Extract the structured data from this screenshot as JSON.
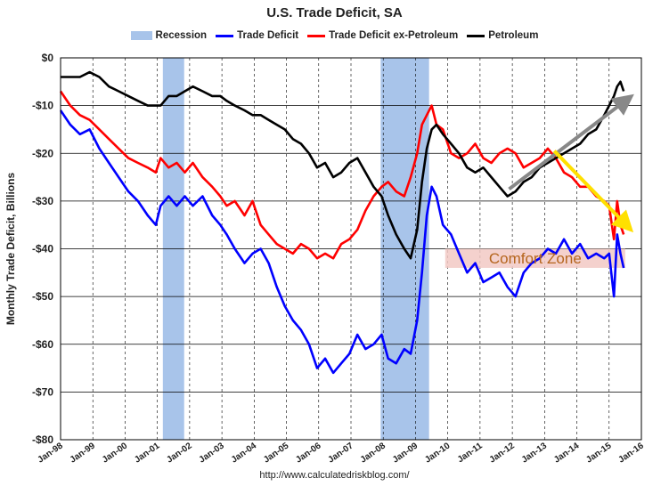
{
  "chart_data": {
    "type": "line",
    "title": "U.S. Trade Deficit, SA",
    "ylabel": "Monthly Trade Deficit, Billions",
    "xlabel": "",
    "ylim": [
      -80,
      0
    ],
    "xlim": [
      1998.0,
      2016.0
    ],
    "y_ticks": [
      "-$80",
      "-$70",
      "-$60",
      "-$50",
      "-$40",
      "-$30",
      "-$20",
      "-$10",
      "$0"
    ],
    "y_tick_values": [
      -80,
      -70,
      -60,
      -50,
      -40,
      -30,
      -20,
      -10,
      0
    ],
    "x_ticks": [
      "Jan-98",
      "Jan-99",
      "Jan-00",
      "Jan-01",
      "Jan-02",
      "Jan-03",
      "Jan-04",
      "Jan-05",
      "Jan-06",
      "Jan-07",
      "Jan-08",
      "Jan-09",
      "Jan-10",
      "Jan-11",
      "Jan-12",
      "Jan-13",
      "Jan-14",
      "Jan-15",
      "Jan-16"
    ],
    "x_tick_values": [
      1998,
      1999,
      2000,
      2001,
      2002,
      2003,
      2004,
      2005,
      2006,
      2007,
      2008,
      2009,
      2010,
      2011,
      2012,
      2013,
      2014,
      2015,
      2016
    ],
    "grid": true,
    "legend_position": "top",
    "recessions": [
      {
        "start": 2001.17,
        "end": 2001.83
      },
      {
        "start": 2007.92,
        "end": 2009.42
      }
    ],
    "recession_label": "Recession",
    "recession_color": "#a8c4ea",
    "annotation": {
      "label": "Comfort Zone",
      "x_start": 2009.92,
      "x_end": 2015.5,
      "y_top": -40,
      "y_bottom": -44,
      "fill": "#f2c9c4",
      "text_color": "#b5651d"
    },
    "arrows": [
      {
        "color": "#888888",
        "x1": 2011.9,
        "y1": -27.5,
        "x2": 2015.6,
        "y2": -8.5
      },
      {
        "color": "#ffe000",
        "x1": 2013.3,
        "y1": -19.5,
        "x2": 2015.6,
        "y2": -35.5
      }
    ],
    "series": [
      {
        "name": "Trade Deficit",
        "color": "#0000ff",
        "points": [
          [
            1998.0,
            -11
          ],
          [
            1998.3,
            -14
          ],
          [
            1998.6,
            -16
          ],
          [
            1998.9,
            -15
          ],
          [
            1999.2,
            -19
          ],
          [
            1999.5,
            -22
          ],
          [
            1999.8,
            -25
          ],
          [
            2000.1,
            -28
          ],
          [
            2000.4,
            -30
          ],
          [
            2000.7,
            -33
          ],
          [
            2000.95,
            -35
          ],
          [
            2001.1,
            -31
          ],
          [
            2001.35,
            -29
          ],
          [
            2001.6,
            -31
          ],
          [
            2001.85,
            -29
          ],
          [
            2002.1,
            -31
          ],
          [
            2002.4,
            -29
          ],
          [
            2002.7,
            -33
          ],
          [
            2002.95,
            -35
          ],
          [
            2003.15,
            -37
          ],
          [
            2003.4,
            -40
          ],
          [
            2003.7,
            -43
          ],
          [
            2003.95,
            -41
          ],
          [
            2004.2,
            -40
          ],
          [
            2004.45,
            -43
          ],
          [
            2004.7,
            -48
          ],
          [
            2004.95,
            -52
          ],
          [
            2005.2,
            -55
          ],
          [
            2005.45,
            -57
          ],
          [
            2005.7,
            -60
          ],
          [
            2005.95,
            -65
          ],
          [
            2006.2,
            -63
          ],
          [
            2006.45,
            -66
          ],
          [
            2006.7,
            -64
          ],
          [
            2006.95,
            -62
          ],
          [
            2007.2,
            -58
          ],
          [
            2007.45,
            -61
          ],
          [
            2007.7,
            -60
          ],
          [
            2007.95,
            -58
          ],
          [
            2008.15,
            -63
          ],
          [
            2008.4,
            -64
          ],
          [
            2008.65,
            -61
          ],
          [
            2008.85,
            -62
          ],
          [
            2009.05,
            -55
          ],
          [
            2009.2,
            -45
          ],
          [
            2009.35,
            -33
          ],
          [
            2009.5,
            -27
          ],
          [
            2009.65,
            -29
          ],
          [
            2009.85,
            -35
          ],
          [
            2010.1,
            -37
          ],
          [
            2010.35,
            -41
          ],
          [
            2010.6,
            -45
          ],
          [
            2010.85,
            -43
          ],
          [
            2011.1,
            -47
          ],
          [
            2011.35,
            -46
          ],
          [
            2011.6,
            -45
          ],
          [
            2011.85,
            -48
          ],
          [
            2012.1,
            -50
          ],
          [
            2012.35,
            -45
          ],
          [
            2012.6,
            -43
          ],
          [
            2012.85,
            -42
          ],
          [
            2013.1,
            -40
          ],
          [
            2013.35,
            -41
          ],
          [
            2013.6,
            -38
          ],
          [
            2013.85,
            -41
          ],
          [
            2014.1,
            -39
          ],
          [
            2014.35,
            -42
          ],
          [
            2014.6,
            -41
          ],
          [
            2014.85,
            -42
          ],
          [
            2015.0,
            -41
          ],
          [
            2015.15,
            -50
          ],
          [
            2015.25,
            -37
          ],
          [
            2015.35,
            -41
          ],
          [
            2015.45,
            -44
          ]
        ]
      },
      {
        "name": "Trade Deficit ex-Petroleum",
        "color": "#ff0000",
        "points": [
          [
            1998.0,
            -7
          ],
          [
            1998.3,
            -10
          ],
          [
            1998.6,
            -12
          ],
          [
            1998.9,
            -13
          ],
          [
            1999.2,
            -15
          ],
          [
            1999.5,
            -17
          ],
          [
            1999.8,
            -19
          ],
          [
            2000.1,
            -21
          ],
          [
            2000.4,
            -22
          ],
          [
            2000.7,
            -23
          ],
          [
            2000.95,
            -24
          ],
          [
            2001.1,
            -21
          ],
          [
            2001.35,
            -23
          ],
          [
            2001.6,
            -22
          ],
          [
            2001.85,
            -24
          ],
          [
            2002.1,
            -22
          ],
          [
            2002.4,
            -25
          ],
          [
            2002.7,
            -27
          ],
          [
            2002.95,
            -29
          ],
          [
            2003.15,
            -31
          ],
          [
            2003.4,
            -30
          ],
          [
            2003.7,
            -33
          ],
          [
            2003.95,
            -30
          ],
          [
            2004.2,
            -35
          ],
          [
            2004.45,
            -37
          ],
          [
            2004.7,
            -39
          ],
          [
            2004.95,
            -40
          ],
          [
            2005.2,
            -41
          ],
          [
            2005.45,
            -39
          ],
          [
            2005.7,
            -40
          ],
          [
            2005.95,
            -42
          ],
          [
            2006.2,
            -41
          ],
          [
            2006.45,
            -42
          ],
          [
            2006.7,
            -39
          ],
          [
            2006.95,
            -38
          ],
          [
            2007.2,
            -36
          ],
          [
            2007.45,
            -32
          ],
          [
            2007.7,
            -29
          ],
          [
            2007.95,
            -27
          ],
          [
            2008.15,
            -26
          ],
          [
            2008.4,
            -28
          ],
          [
            2008.65,
            -29
          ],
          [
            2008.85,
            -25
          ],
          [
            2009.05,
            -20
          ],
          [
            2009.2,
            -14
          ],
          [
            2009.35,
            -12
          ],
          [
            2009.5,
            -10
          ],
          [
            2009.65,
            -14
          ],
          [
            2009.85,
            -15
          ],
          [
            2010.1,
            -20
          ],
          [
            2010.35,
            -21
          ],
          [
            2010.6,
            -20
          ],
          [
            2010.85,
            -18
          ],
          [
            2011.1,
            -21
          ],
          [
            2011.35,
            -22
          ],
          [
            2011.6,
            -20
          ],
          [
            2011.85,
            -19
          ],
          [
            2012.1,
            -20
          ],
          [
            2012.35,
            -23
          ],
          [
            2012.6,
            -22
          ],
          [
            2012.85,
            -21
          ],
          [
            2013.1,
            -19
          ],
          [
            2013.35,
            -21
          ],
          [
            2013.6,
            -24
          ],
          [
            2013.85,
            -25
          ],
          [
            2014.1,
            -27
          ],
          [
            2014.35,
            -27
          ],
          [
            2014.6,
            -29
          ],
          [
            2014.85,
            -30
          ],
          [
            2015.0,
            -31
          ],
          [
            2015.15,
            -38
          ],
          [
            2015.25,
            -30
          ],
          [
            2015.35,
            -35
          ],
          [
            2015.45,
            -37
          ]
        ]
      },
      {
        "name": "Petroleum",
        "color": "#000000",
        "points": [
          [
            1998.0,
            -4
          ],
          [
            1998.3,
            -4
          ],
          [
            1998.6,
            -4
          ],
          [
            1998.9,
            -3
          ],
          [
            1999.2,
            -4
          ],
          [
            1999.5,
            -6
          ],
          [
            1999.8,
            -7
          ],
          [
            2000.1,
            -8
          ],
          [
            2000.4,
            -9
          ],
          [
            2000.7,
            -10
          ],
          [
            2000.95,
            -10
          ],
          [
            2001.1,
            -10
          ],
          [
            2001.35,
            -8
          ],
          [
            2001.6,
            -8
          ],
          [
            2001.85,
            -7
          ],
          [
            2002.1,
            -6
          ],
          [
            2002.4,
            -7
          ],
          [
            2002.7,
            -8
          ],
          [
            2002.95,
            -8
          ],
          [
            2003.15,
            -9
          ],
          [
            2003.4,
            -10
          ],
          [
            2003.7,
            -11
          ],
          [
            2003.95,
            -12
          ],
          [
            2004.2,
            -12
          ],
          [
            2004.45,
            -13
          ],
          [
            2004.7,
            -14
          ],
          [
            2004.95,
            -15
          ],
          [
            2005.2,
            -17
          ],
          [
            2005.45,
            -18
          ],
          [
            2005.7,
            -20
          ],
          [
            2005.95,
            -23
          ],
          [
            2006.2,
            -22
          ],
          [
            2006.45,
            -25
          ],
          [
            2006.7,
            -24
          ],
          [
            2006.95,
            -22
          ],
          [
            2007.2,
            -21
          ],
          [
            2007.45,
            -24
          ],
          [
            2007.7,
            -27
          ],
          [
            2007.95,
            -29
          ],
          [
            2008.15,
            -33
          ],
          [
            2008.4,
            -37
          ],
          [
            2008.65,
            -40
          ],
          [
            2008.85,
            -42
          ],
          [
            2009.05,
            -36
          ],
          [
            2009.2,
            -26
          ],
          [
            2009.35,
            -19
          ],
          [
            2009.5,
            -15
          ],
          [
            2009.65,
            -14
          ],
          [
            2009.85,
            -16
          ],
          [
            2010.1,
            -18
          ],
          [
            2010.35,
            -20
          ],
          [
            2010.6,
            -23
          ],
          [
            2010.85,
            -24
          ],
          [
            2011.1,
            -23
          ],
          [
            2011.35,
            -25
          ],
          [
            2011.6,
            -27
          ],
          [
            2011.85,
            -29
          ],
          [
            2012.1,
            -28
          ],
          [
            2012.35,
            -26
          ],
          [
            2012.6,
            -25
          ],
          [
            2012.85,
            -23
          ],
          [
            2013.1,
            -22
          ],
          [
            2013.35,
            -21
          ],
          [
            2013.6,
            -20
          ],
          [
            2013.85,
            -19
          ],
          [
            2014.1,
            -18
          ],
          [
            2014.35,
            -16
          ],
          [
            2014.6,
            -15
          ],
          [
            2014.85,
            -12
          ],
          [
            2015.0,
            -10
          ],
          [
            2015.15,
            -8
          ],
          [
            2015.25,
            -6
          ],
          [
            2015.35,
            -5
          ],
          [
            2015.45,
            -7
          ]
        ]
      }
    ]
  },
  "footer": "http://www.calculatedriskblog.com/"
}
